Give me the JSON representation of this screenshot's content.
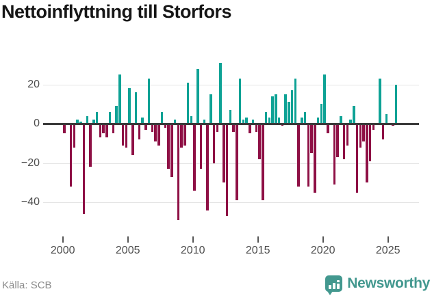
{
  "header": {
    "title": "Nettoinflyttning till Storfors"
  },
  "chart_data": {
    "type": "bar",
    "title": "Nettoinflyttning till Storfors",
    "frequency": "quarterly",
    "start_period": "2000-Q1",
    "end_period": "2025-Q3",
    "values": [
      -5,
      0,
      -32,
      -12,
      2,
      1,
      -46,
      4,
      -22,
      2,
      6,
      -7,
      -5,
      -7,
      6,
      -5,
      9,
      25,
      -11,
      -12,
      18,
      -16,
      16,
      -8,
      3,
      -3,
      23,
      -4,
      -9,
      -11,
      6,
      -2,
      -23,
      -27,
      2,
      -49,
      -12,
      -11,
      21,
      4,
      -34,
      28,
      -23,
      2,
      -44,
      15,
      -20,
      -4,
      31,
      -30,
      -47,
      7,
      -4,
      -39,
      23,
      2,
      3,
      -5,
      2,
      -4,
      -18,
      -39,
      6,
      3,
      14,
      15,
      3,
      -1,
      15,
      11,
      17,
      23,
      -32,
      3,
      6,
      -32,
      -15,
      -35,
      3,
      10,
      25,
      -5,
      0,
      -31,
      -17,
      4,
      -18,
      -11,
      2,
      9,
      -35,
      -12,
      -9,
      -30,
      -19,
      -3,
      0,
      23,
      -8,
      5,
      0,
      -1,
      20
    ],
    "yticks": [
      {
        "value": 20,
        "label": "20"
      },
      {
        "value": 0,
        "label": "0"
      },
      {
        "value": -20,
        "label": "−20"
      },
      {
        "value": -40,
        "label": "−40"
      }
    ],
    "xticks": [
      {
        "value": 2000,
        "label": "2000"
      },
      {
        "value": 2005,
        "label": "2005"
      },
      {
        "value": 2010,
        "label": "2010"
      },
      {
        "value": 2015,
        "label": "2015"
      },
      {
        "value": 2020,
        "label": "2020"
      },
      {
        "value": 2025,
        "label": "2025"
      }
    ],
    "ylim": [
      -52,
      34
    ],
    "grid": true,
    "legend": false,
    "positive_color": "#0ea295",
    "negative_color": "#8e1045"
  },
  "footer": {
    "source": "Källa: SCB",
    "brand": "Newsworthy"
  }
}
